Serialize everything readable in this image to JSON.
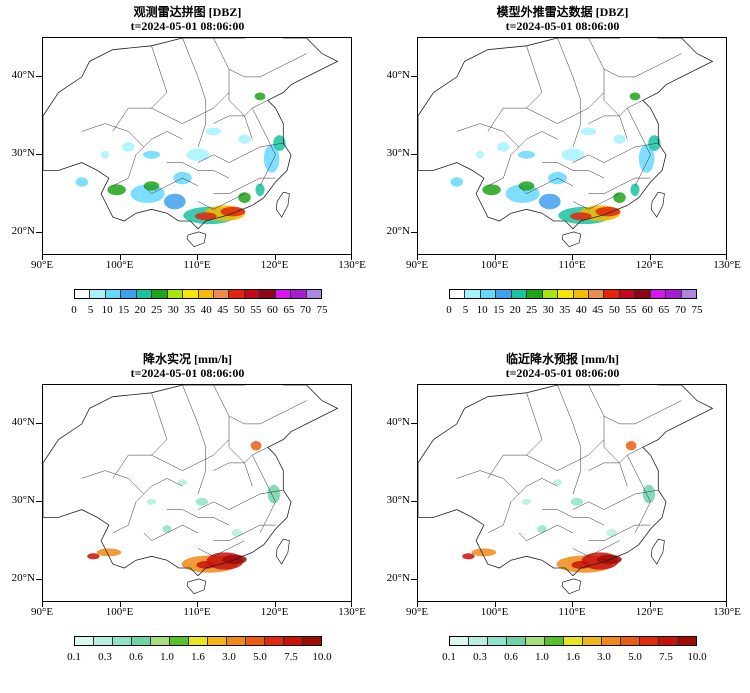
{
  "panels": [
    {
      "id": "obs-radar",
      "title": "观测雷达拼图 [DBZ]",
      "time": "t=2024-05-01 08:06:00",
      "colorbar_labels": [
        "0",
        "5",
        "10",
        "15",
        "20",
        "25",
        "30",
        "35",
        "40",
        "45",
        "50",
        "55",
        "60",
        "65",
        "70",
        "75"
      ],
      "colorbar_colors": [
        "#ffffff",
        "#a6f3ff",
        "#66d8ff",
        "#3fa0ef",
        "#18c3a1",
        "#1ea41a",
        "#abe40d",
        "#f6e600",
        "#f5b900",
        "#e98c4e",
        "#e3240c",
        "#c4071a",
        "#8c0617",
        "#d713ef",
        "#a71ed0",
        "#ae87e4"
      ],
      "field": "radar"
    },
    {
      "id": "model-radar",
      "title": "模型外推雷达数据 [DBZ]",
      "time": "t=2024-05-01 08:06:00",
      "colorbar_labels": [
        "0",
        "5",
        "10",
        "15",
        "20",
        "25",
        "30",
        "35",
        "40",
        "45",
        "50",
        "55",
        "60",
        "65",
        "70",
        "75"
      ],
      "colorbar_colors": [
        "#ffffff",
        "#a6f3ff",
        "#66d8ff",
        "#3fa0ef",
        "#18c3a1",
        "#1ea41a",
        "#abe40d",
        "#f6e600",
        "#f5b900",
        "#e98c4e",
        "#e3240c",
        "#c4071a",
        "#8c0617",
        "#d713ef",
        "#a71ed0",
        "#ae87e4"
      ],
      "field": "radar"
    },
    {
      "id": "obs-precip",
      "title": "降水实况 [mm/h]",
      "time": "t=2024-05-01 08:06:00",
      "colorbar_labels": [
        "0.1",
        "0.3",
        "0.6",
        "1.0",
        "1.6",
        "3.0",
        "5.0",
        "7.5",
        "10.0"
      ],
      "colorbar_colors": [
        "#d8f8f0",
        "#b6efe0",
        "#8ee3c8",
        "#6fd3a8",
        "#a9de7c",
        "#55c229",
        "#e8e61b",
        "#f1b515",
        "#f08a16",
        "#ea5d12",
        "#df2a10",
        "#c81209",
        "#a20a05"
      ],
      "field": "precip"
    },
    {
      "id": "nowcast-precip",
      "title": "临近降水预报 [mm/h]",
      "time": "t=2024-05-01 08:06:00",
      "colorbar_labels": [
        "0.1",
        "0.3",
        "0.6",
        "1.0",
        "1.6",
        "3.0",
        "5.0",
        "7.5",
        "10.0"
      ],
      "colorbar_colors": [
        "#d8f8f0",
        "#b6efe0",
        "#8ee3c8",
        "#6fd3a8",
        "#a9de7c",
        "#55c229",
        "#e8e61b",
        "#f1b515",
        "#f08a16",
        "#ea5d12",
        "#df2a10",
        "#c81209",
        "#a20a05"
      ],
      "field": "precip"
    }
  ],
  "lat_ticks": [
    "40°N",
    "30°N",
    "20°N"
  ],
  "lon_ticks": [
    "90°E",
    "100°E",
    "110°E",
    "120°E",
    "130°E"
  ]
}
